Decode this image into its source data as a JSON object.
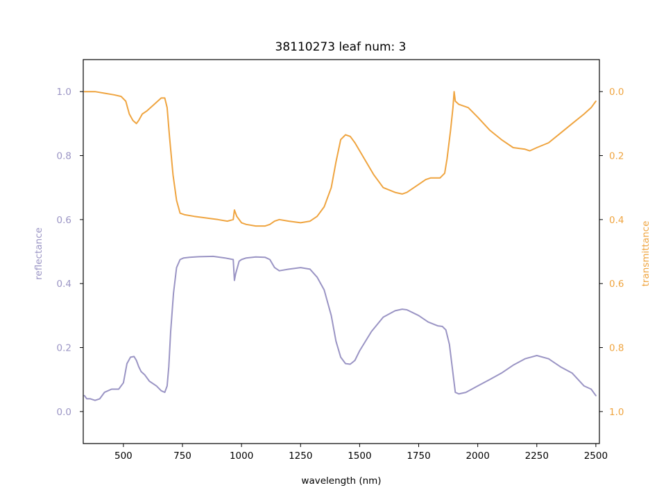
{
  "chart_data": {
    "type": "line",
    "title": "38110273 leaf num: 3",
    "xlabel": "wavelength (nm)",
    "ylabel_left": "reflectance",
    "ylabel_right": "transmittance",
    "xlim": [
      330,
      2515
    ],
    "ylim_left": [
      -0.1,
      1.1
    ],
    "ylim_right": [
      1.1,
      -0.1
    ],
    "right_axis_inverted": true,
    "grid": false,
    "legend": "none",
    "x_ticks": [
      "500",
      "750",
      "1000",
      "1250",
      "1500",
      "1750",
      "2000",
      "2250",
      "2500"
    ],
    "y_left_ticks": [
      "0.0",
      "0.2",
      "0.4",
      "0.6",
      "0.8",
      "1.0"
    ],
    "y_right_ticks": [
      "0.0",
      "0.2",
      "0.4",
      "0.6",
      "0.8",
      "1.0"
    ],
    "colors": {
      "reflectance": "#9a94c4",
      "transmittance": "#efa43f"
    },
    "series": [
      {
        "key": "reflectance",
        "axis": "left",
        "x": [
          335,
          345,
          360,
          380,
          400,
          420,
          450,
          480,
          500,
          515,
          530,
          545,
          555,
          565,
          575,
          590,
          610,
          640,
          660,
          675,
          685,
          692,
          700,
          712,
          725,
          740,
          755,
          780,
          820,
          880,
          930,
          965,
          970,
          975,
          990,
          1000,
          1020,
          1060,
          1100,
          1120,
          1140,
          1160,
          1200,
          1250,
          1290,
          1320,
          1350,
          1380,
          1400,
          1420,
          1440,
          1460,
          1480,
          1500,
          1550,
          1600,
          1650,
          1680,
          1700,
          1750,
          1790,
          1830,
          1850,
          1865,
          1880,
          1895,
          1905,
          1920,
          1950,
          2000,
          2050,
          2100,
          2150,
          2200,
          2250,
          2300,
          2350,
          2400,
          2450,
          2480,
          2500
        ],
        "y": [
          0.05,
          0.04,
          0.04,
          0.035,
          0.04,
          0.06,
          0.07,
          0.07,
          0.09,
          0.15,
          0.17,
          0.172,
          0.16,
          0.14,
          0.125,
          0.115,
          0.095,
          0.08,
          0.065,
          0.06,
          0.08,
          0.14,
          0.25,
          0.37,
          0.45,
          0.475,
          0.48,
          0.482,
          0.484,
          0.485,
          0.48,
          0.475,
          0.41,
          0.43,
          0.47,
          0.475,
          0.48,
          0.483,
          0.482,
          0.475,
          0.45,
          0.44,
          0.445,
          0.45,
          0.445,
          0.42,
          0.38,
          0.3,
          0.22,
          0.17,
          0.15,
          0.148,
          0.16,
          0.19,
          0.25,
          0.295,
          0.315,
          0.32,
          0.318,
          0.3,
          0.28,
          0.268,
          0.266,
          0.255,
          0.21,
          0.12,
          0.06,
          0.055,
          0.06,
          0.08,
          0.1,
          0.12,
          0.145,
          0.165,
          0.175,
          0.165,
          0.14,
          0.12,
          0.08,
          0.07,
          0.05
        ]
      },
      {
        "key": "transmittance",
        "axis": "right",
        "x": [
          335,
          350,
          380,
          420,
          460,
          490,
          510,
          525,
          540,
          555,
          565,
          580,
          600,
          630,
          660,
          675,
          685,
          695,
          710,
          725,
          740,
          760,
          800,
          850,
          900,
          940,
          965,
          970,
          980,
          1000,
          1020,
          1060,
          1100,
          1120,
          1140,
          1160,
          1200,
          1250,
          1290,
          1320,
          1350,
          1380,
          1400,
          1420,
          1440,
          1460,
          1480,
          1520,
          1560,
          1600,
          1650,
          1680,
          1700,
          1750,
          1780,
          1800,
          1840,
          1860,
          1870,
          1885,
          1895,
          1900,
          1905,
          1920,
          1960,
          2000,
          2050,
          2100,
          2150,
          2200,
          2220,
          2250,
          2300,
          2350,
          2400,
          2450,
          2480,
          2500
        ],
        "y": [
          0.0,
          0.0,
          0.0,
          0.005,
          0.01,
          0.015,
          0.03,
          0.07,
          0.09,
          0.1,
          0.09,
          0.07,
          0.06,
          0.04,
          0.02,
          0.02,
          0.05,
          0.14,
          0.26,
          0.34,
          0.38,
          0.385,
          0.39,
          0.395,
          0.4,
          0.405,
          0.4,
          0.37,
          0.39,
          0.41,
          0.415,
          0.42,
          0.42,
          0.415,
          0.405,
          0.4,
          0.405,
          0.41,
          0.405,
          0.39,
          0.36,
          0.3,
          0.22,
          0.15,
          0.135,
          0.14,
          0.16,
          0.21,
          0.26,
          0.3,
          0.315,
          0.32,
          0.315,
          0.29,
          0.275,
          0.27,
          0.27,
          0.255,
          0.21,
          0.12,
          0.05,
          0.0,
          0.03,
          0.04,
          0.05,
          0.08,
          0.12,
          0.15,
          0.175,
          0.18,
          0.185,
          0.175,
          0.16,
          0.13,
          0.1,
          0.07,
          0.05,
          0.03
        ]
      }
    ]
  }
}
